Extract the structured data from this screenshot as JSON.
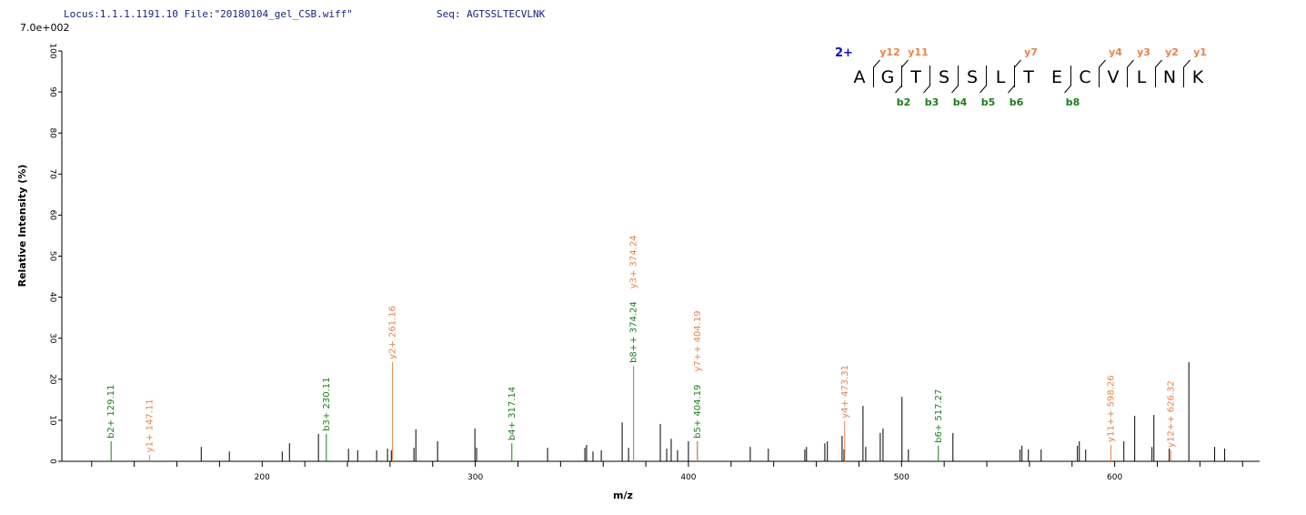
{
  "header": {
    "locus": "Locus:1.1.1.1191.10 File:\"20180104_gel_CSB.wiff\"",
    "seq": "Seq: AGTSSLTECVLNK"
  },
  "chart_data": {
    "type": "spectrum",
    "scale_label": "7.0e+002",
    "ylabel": "Relative Intensity (%)",
    "xlabel": "m/z",
    "xlim": [
      106,
      668
    ],
    "ylim": [
      0,
      100
    ],
    "xticks": [
      200,
      300,
      400,
      500,
      600
    ],
    "xminor": [
      120,
      140,
      160,
      180,
      220,
      240,
      260,
      280,
      320,
      340,
      360,
      380,
      420,
      440,
      460,
      480,
      520,
      540,
      560,
      580,
      620,
      640,
      660
    ],
    "yticks": [
      0,
      10,
      20,
      30,
      40,
      50,
      60,
      70,
      80,
      90,
      100
    ],
    "peaks": {
      "color": "#000000",
      "x": [
        171.4,
        184.6,
        209.4,
        212.8,
        226.4,
        240.5,
        244.8,
        253.7,
        258.8,
        260.6,
        271.2,
        272.1,
        282.3,
        299.8,
        300.6,
        333.9,
        351.4,
        352.2,
        355.2,
        359.1,
        368.9,
        371.9,
        386.8,
        389.8,
        391.9,
        394.9,
        400.0,
        429.0,
        437.5,
        454.6,
        455.4,
        464.0,
        465.2,
        472.1,
        473.0,
        481.9,
        483.2,
        490.0,
        491.3,
        500.2,
        503.2,
        524.1,
        555.6,
        556.5,
        559.5,
        565.5,
        582.5,
        583.4,
        586.4,
        604.3,
        609.4,
        617.5,
        618.4,
        625.6,
        634.8,
        646.9,
        651.6
      ],
      "values": [
        3.5,
        2.4,
        2.4,
        4.4,
        6.7,
        3.1,
        2.7,
        2.7,
        3.1,
        2.7,
        3.3,
        7.8,
        4.9,
        8.0,
        3.3,
        3.3,
        3.3,
        4.0,
        2.4,
        2.7,
        9.5,
        3.3,
        9.1,
        3.1,
        5.5,
        2.7,
        4.9,
        3.5,
        3.1,
        2.9,
        3.5,
        4.4,
        4.9,
        6.2,
        2.9,
        13.5,
        3.5,
        6.9,
        8.0,
        15.7,
        2.9,
        6.9,
        2.9,
        3.8,
        2.9,
        2.9,
        3.8,
        4.9,
        2.9,
        4.9,
        11.1,
        3.5,
        11.3,
        3.1,
        24.2,
        3.5,
        3.1
      ]
    },
    "b_ions": {
      "color": "#1a7f1a",
      "x": [
        129.11,
        230.11,
        317.14,
        374.24,
        404.19,
        517.27
      ],
      "values": [
        4.9,
        6.7,
        4.4,
        23.3,
        4.9,
        3.8
      ],
      "labels": [
        "b2+ 129.11",
        "b3+ 230.11",
        "b4+ 317.14",
        "b8++ 374.24",
        "b5+ 404.19",
        "b6+ 517.27"
      ]
    },
    "y_ions": {
      "color": "#e8834a",
      "x": [
        147.11,
        261.16,
        374.24,
        404.19,
        473.31,
        598.26,
        626.32
      ],
      "values": [
        1.5,
        24.2,
        23.3,
        4.9,
        9.8,
        4.0,
        2.7
      ],
      "labels": [
        "y1+ 147.11",
        "y2+ 261.16",
        "y3+ 374.24",
        "y7++ 404.19",
        "y4+ 473.31",
        "y11++ 598.26",
        "y12++ 626.32"
      ]
    }
  },
  "sequence": {
    "charge": "2+",
    "residues": [
      "A",
      "G",
      "T",
      "S",
      "S",
      "L",
      "T",
      "E",
      "C",
      "V",
      "L",
      "N",
      "K"
    ],
    "y_ions": [
      "y12",
      "y11",
      "y7",
      "y4",
      "y3",
      "y2",
      "y1"
    ],
    "b_ions": [
      "b2",
      "b3",
      "b4",
      "b5",
      "b6",
      "b8"
    ]
  }
}
